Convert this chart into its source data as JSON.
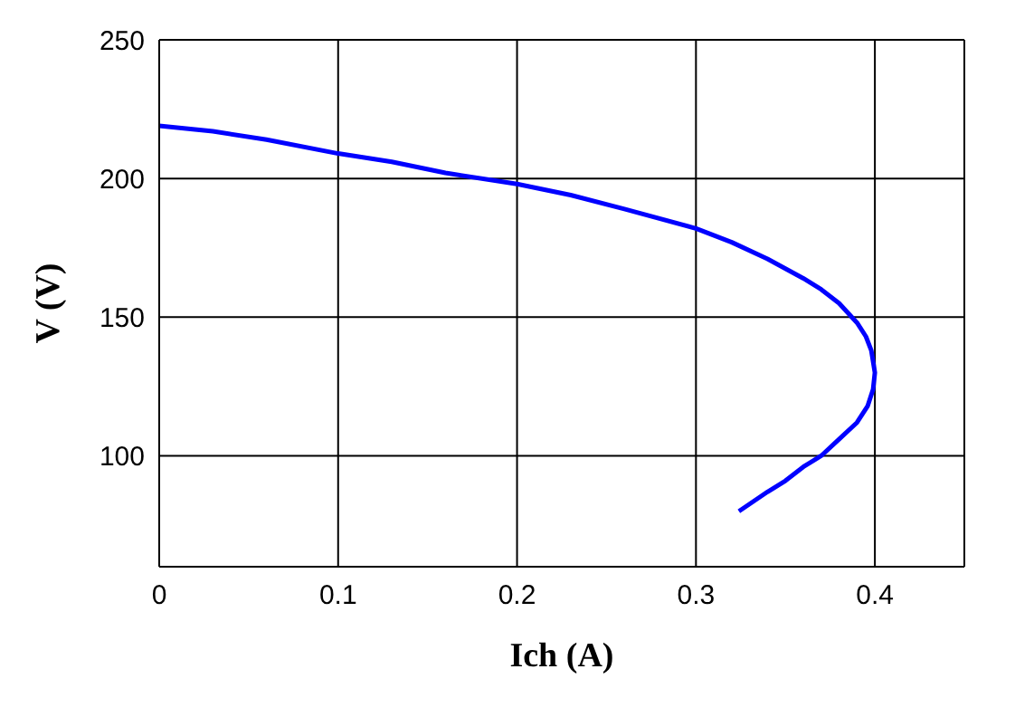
{
  "chart_data": {
    "type": "line",
    "xlabel": "Ich (A)",
    "ylabel": "V (V)",
    "x": [
      0,
      0.03,
      0.06,
      0.1,
      0.13,
      0.16,
      0.2,
      0.23,
      0.26,
      0.3,
      0.32,
      0.34,
      0.36,
      0.37,
      0.38,
      0.39,
      0.395,
      0.398,
      0.4,
      0.399,
      0.396,
      0.39,
      0.38,
      0.37,
      0.36,
      0.35,
      0.34,
      0.324
    ],
    "series": [
      {
        "color": "#0000ff",
        "values": [
          219,
          217,
          214,
          209,
          206,
          202,
          198,
          194,
          189,
          182,
          177,
          171,
          164,
          160,
          155,
          148,
          143,
          138,
          130,
          124,
          118,
          112,
          106,
          100,
          96,
          91,
          87,
          80
        ]
      }
    ],
    "xlim": [
      0,
      0.45
    ],
    "xticks": [
      0,
      0.1,
      0.2,
      0.3,
      0.4
    ],
    "ylim": [
      60,
      250
    ],
    "yticks": [
      100,
      150,
      200,
      250
    ],
    "grid": true,
    "marker": "none",
    "line_style": "solid"
  }
}
